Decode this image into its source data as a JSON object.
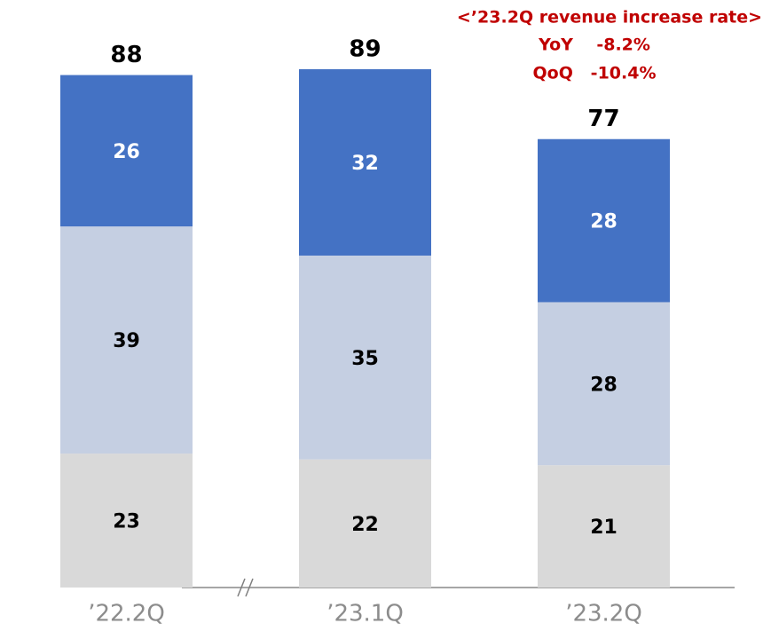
{
  "chart_data": {
    "type": "stacked_bar",
    "categories": [
      "’22.2Q",
      "’23.1Q",
      "’23.2Q"
    ],
    "series": [
      {
        "color": "#d9d9d9",
        "label_color": "#000000",
        "values": [
          23,
          22,
          21
        ]
      },
      {
        "color": "#c5cfe2",
        "label_color": "#000000",
        "values": [
          39,
          35,
          28
        ]
      },
      {
        "color": "#4472c4",
        "label_color": "#ffffff",
        "values": [
          26,
          32,
          28
        ]
      }
    ],
    "totals": [
      88,
      89,
      77
    ],
    "annotations": [
      "<’23.2Q revenue increase rate>",
      "YoY    -8.2%",
      "QoQ   -10.4%"
    ],
    "annotation_color": "#c00000"
  }
}
